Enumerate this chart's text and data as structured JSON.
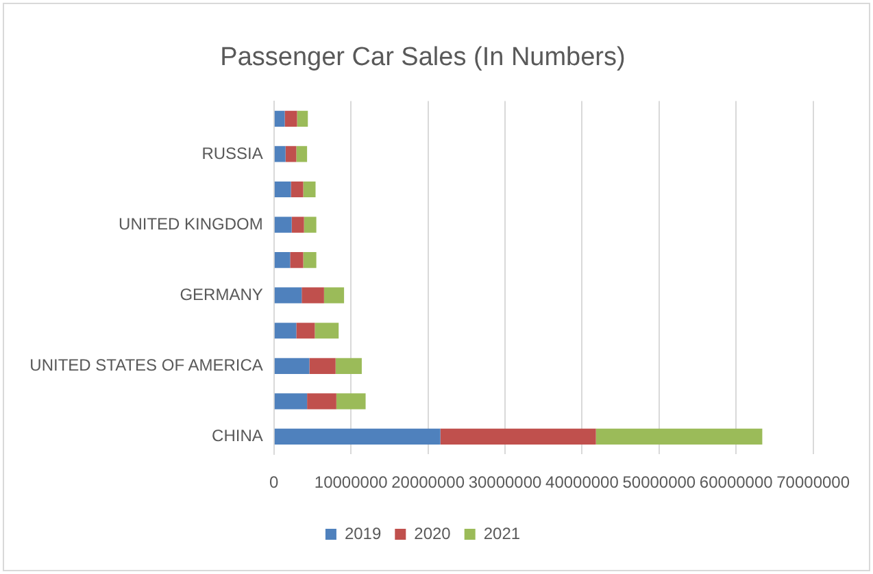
{
  "chart_data": {
    "type": "bar",
    "orientation": "horizontal",
    "stacked": true,
    "title": "Passenger Car Sales (In Numbers)",
    "categories": [
      null,
      "RUSSIA",
      null,
      "UNITED KINGDOM",
      null,
      "GERMANY",
      null,
      "UNITED STATES OF AMERICA",
      null,
      "CHINA"
    ],
    "series": [
      {
        "name": "2019",
        "color": "#4f81bd",
        "values": [
          1400000,
          1500000,
          2200000,
          2300000,
          2100000,
          3600000,
          2900000,
          4600000,
          4300000,
          21600000
        ]
      },
      {
        "name": "2020",
        "color": "#c0504d",
        "values": [
          1600000,
          1400000,
          1600000,
          1600000,
          1700000,
          2900000,
          2400000,
          3400000,
          3800000,
          20200000
        ]
      },
      {
        "name": "2021",
        "color": "#9bbb59",
        "values": [
          1400000,
          1400000,
          1600000,
          1600000,
          1700000,
          2600000,
          3100000,
          3400000,
          3800000,
          21600000
        ]
      }
    ],
    "xlim": [
      0,
      70000000
    ],
    "xticks": [
      0,
      10000000,
      20000000,
      30000000,
      40000000,
      50000000,
      60000000,
      70000000
    ],
    "grid": "x",
    "legend": "bottom"
  }
}
